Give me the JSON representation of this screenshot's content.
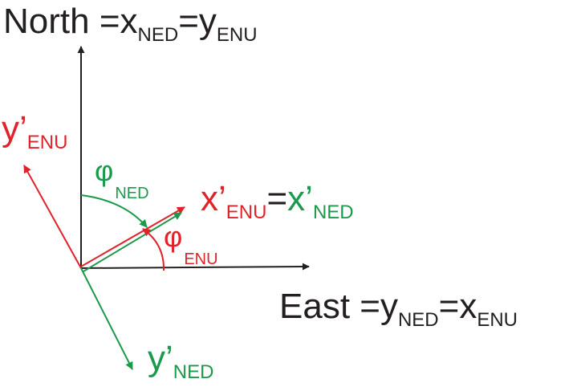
{
  "colors": {
    "black": "#231f20",
    "red": "#e0232b",
    "green": "#1a9a4a"
  },
  "labels": {
    "north": {
      "main": "North =x",
      "sub1": "NED",
      "mid": "=y",
      "sub2": "ENU"
    },
    "east": {
      "main": "East =y",
      "sub1": "NED",
      "mid": "=x",
      "sub2": "ENU"
    },
    "y_enu_prime": {
      "main": "y’",
      "sub": "ENU"
    },
    "y_ned_prime": {
      "main": "y’",
      "sub": "NED"
    },
    "x_prime": {
      "main1": "x’",
      "sub1": "ENU",
      "eq": "=",
      "main2": "x’",
      "sub2": "NED"
    },
    "phi_ned": {
      "main": "φ",
      "sub": "NED"
    },
    "phi_enu": {
      "main": "φ",
      "sub": "ENU"
    }
  }
}
